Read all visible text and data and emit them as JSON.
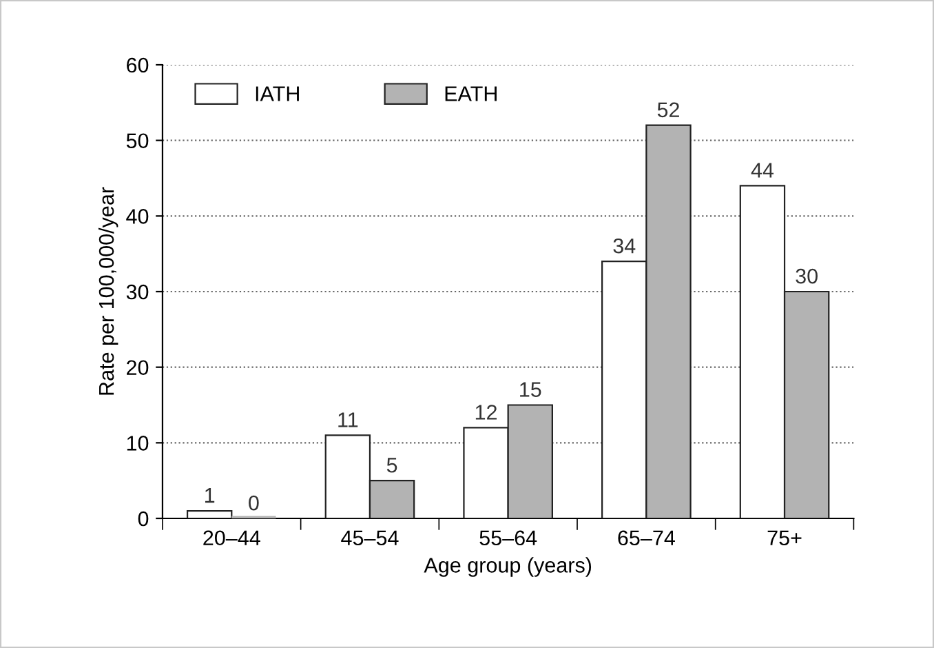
{
  "chart_data": {
    "type": "bar",
    "xlabel": "Age group (years)",
    "ylabel": "Rate per 100,000/year",
    "categories": [
      "20–44",
      "45–54",
      "55–64",
      "65–74",
      "75+"
    ],
    "series": [
      {
        "name": "IATH",
        "color": "#ffffff",
        "values": [
          1,
          11,
          12,
          34,
          44
        ]
      },
      {
        "name": "EATH",
        "color": "#b3b3b3",
        "values": [
          0,
          5,
          15,
          52,
          30
        ]
      }
    ],
    "ylim": [
      0,
      60
    ],
    "yticks": [
      0,
      10,
      20,
      30,
      40,
      50,
      60
    ],
    "grid": "y",
    "legend": "top left",
    "data_labels": true
  }
}
